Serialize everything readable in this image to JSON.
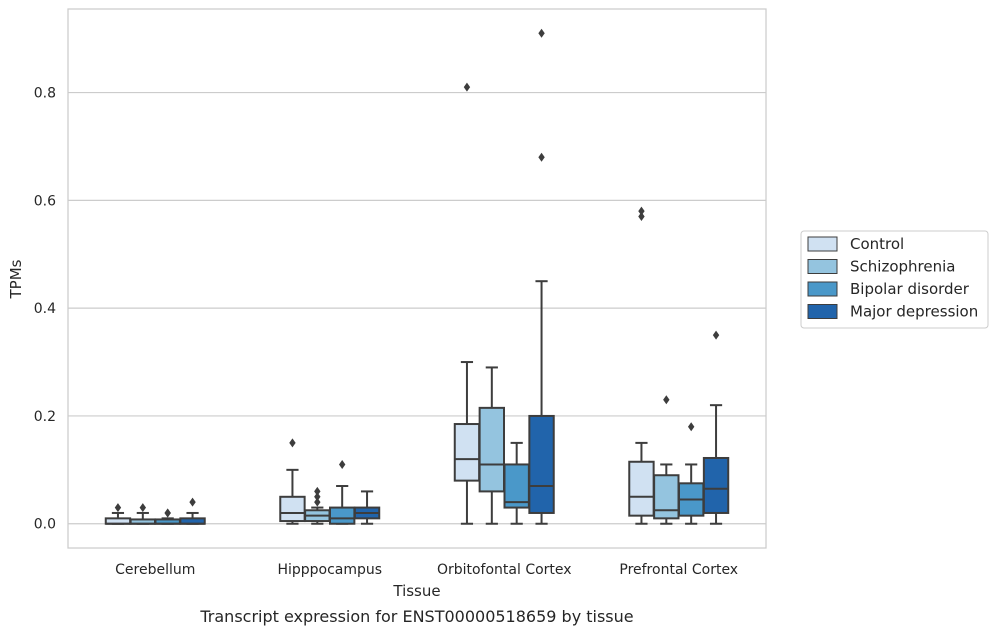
{
  "chart_data": {
    "type": "boxplot",
    "title": "Transcript expression for ENST00000518659 by tissue",
    "xlabel": "Tissue",
    "ylabel": "TPMs",
    "ylim": [
      -0.045,
      0.955
    ],
    "yticks": [
      0.0,
      0.2,
      0.4,
      0.6,
      0.8
    ],
    "ytick_labels": [
      "0.0",
      "0.2",
      "0.4",
      "0.6",
      "0.8"
    ],
    "grid": "horizontal",
    "legend_position": "right",
    "categories": [
      "Cerebellum",
      "Hipppocampus",
      "Orbitofontal Cortex",
      "Prefrontal Cortex"
    ],
    "series": [
      {
        "name": "Control",
        "color": "#d0e1f2",
        "boxes": [
          {
            "q1": 0.0,
            "median": 0.0,
            "q3": 0.01,
            "whisker_low": 0.0,
            "whisker_high": 0.02,
            "outliers": [
              0.03
            ]
          },
          {
            "q1": 0.005,
            "median": 0.02,
            "q3": 0.05,
            "whisker_low": 0.0,
            "whisker_high": 0.1,
            "outliers": [
              0.15
            ]
          },
          {
            "q1": 0.08,
            "median": 0.12,
            "q3": 0.185,
            "whisker_low": 0.0,
            "whisker_high": 0.3,
            "outliers": [
              0.81
            ]
          },
          {
            "q1": 0.015,
            "median": 0.05,
            "q3": 0.115,
            "whisker_low": 0.0,
            "whisker_high": 0.15,
            "outliers": [
              0.57,
              0.58
            ]
          }
        ]
      },
      {
        "name": "Schizophrenia",
        "color": "#94c4df",
        "boxes": [
          {
            "q1": 0.0,
            "median": 0.0,
            "q3": 0.008,
            "whisker_low": 0.0,
            "whisker_high": 0.02,
            "outliers": [
              0.03
            ]
          },
          {
            "q1": 0.005,
            "median": 0.015,
            "q3": 0.025,
            "whisker_low": 0.0,
            "whisker_high": 0.03,
            "outliers": [
              0.04,
              0.05,
              0.06
            ]
          },
          {
            "q1": 0.06,
            "median": 0.11,
            "q3": 0.215,
            "whisker_low": 0.0,
            "whisker_high": 0.29,
            "outliers": []
          },
          {
            "q1": 0.01,
            "median": 0.025,
            "q3": 0.09,
            "whisker_low": 0.0,
            "whisker_high": 0.11,
            "outliers": [
              0.23
            ]
          }
        ]
      },
      {
        "name": "Bipolar disorder",
        "color": "#4a98c9",
        "boxes": [
          {
            "q1": 0.0,
            "median": 0.0,
            "q3": 0.008,
            "whisker_low": 0.0,
            "whisker_high": 0.01,
            "outliers": [
              0.02,
              0.02
            ]
          },
          {
            "q1": 0.0,
            "median": 0.01,
            "q3": 0.03,
            "whisker_low": 0.0,
            "whisker_high": 0.07,
            "outliers": [
              0.11
            ]
          },
          {
            "q1": 0.03,
            "median": 0.04,
            "q3": 0.11,
            "whisker_low": 0.0,
            "whisker_high": 0.15,
            "outliers": []
          },
          {
            "q1": 0.015,
            "median": 0.045,
            "q3": 0.075,
            "whisker_low": 0.0,
            "whisker_high": 0.11,
            "outliers": [
              0.18
            ]
          }
        ]
      },
      {
        "name": "Major depression",
        "color": "#2164ab",
        "boxes": [
          {
            "q1": 0.0,
            "median": 0.0,
            "q3": 0.01,
            "whisker_low": 0.0,
            "whisker_high": 0.02,
            "outliers": [
              0.04
            ]
          },
          {
            "q1": 0.01,
            "median": 0.02,
            "q3": 0.03,
            "whisker_low": 0.0,
            "whisker_high": 0.06,
            "outliers": []
          },
          {
            "q1": 0.02,
            "median": 0.07,
            "q3": 0.2,
            "whisker_low": 0.0,
            "whisker_high": 0.45,
            "outliers": [
              0.68,
              0.91
            ]
          },
          {
            "q1": 0.02,
            "median": 0.065,
            "q3": 0.122,
            "whisker_low": 0.0,
            "whisker_high": 0.22,
            "outliers": [
              0.35
            ]
          }
        ]
      }
    ]
  },
  "colors": {
    "grid": "#cccccc",
    "box_edge": "#3d3d3d",
    "axes_frame": "#cccccc",
    "legend_frame": "#cccccc"
  }
}
